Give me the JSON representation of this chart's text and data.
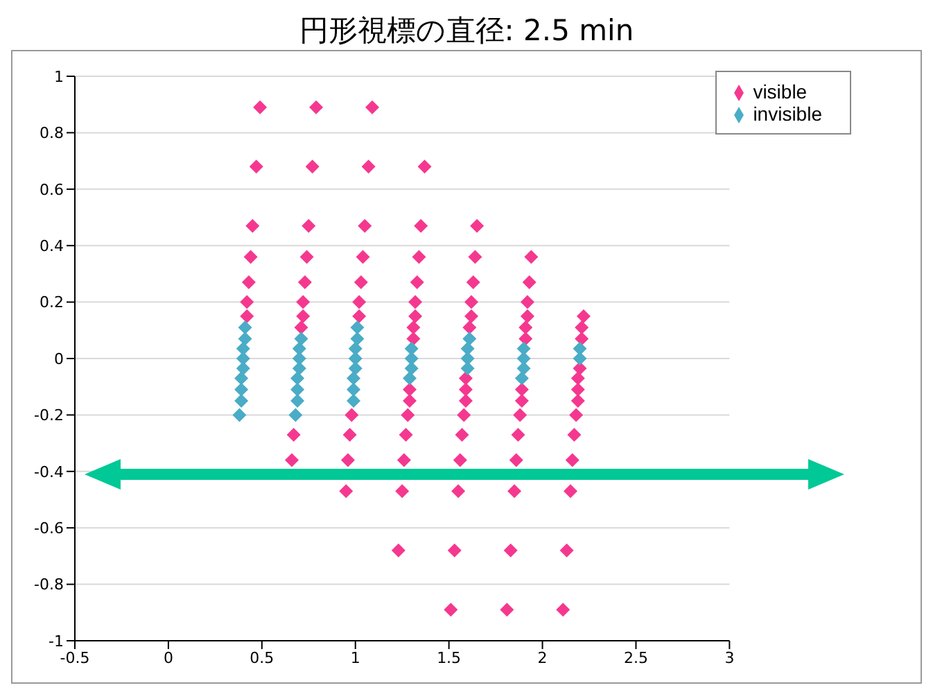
{
  "chart_data": {
    "type": "scatter",
    "title": "円形視標の直径: 2.5 min",
    "xlim": [
      -0.5,
      3
    ],
    "xticks": [
      -0.5,
      0,
      0.5,
      1,
      1.5,
      2,
      2.5,
      3
    ],
    "ylim": [
      -1,
      1
    ],
    "yticks": [
      -1,
      -0.8,
      -0.6,
      -0.4,
      -0.2,
      0,
      0.2,
      0.4,
      0.6,
      0.8,
      1
    ],
    "grid": "y",
    "legend": "top right",
    "marker": "diamond",
    "series": [
      {
        "name": "visible",
        "color": "#f5388f",
        "x": [
          0.49,
          0.47,
          0.45,
          0.44,
          0.43,
          0.42,
          0.42,
          0.79,
          0.77,
          0.75,
          0.74,
          0.73,
          0.72,
          0.72,
          0.71,
          0.67,
          0.66,
          1.09,
          1.07,
          1.05,
          1.04,
          1.03,
          1.02,
          1.02,
          0.98,
          0.97,
          0.96,
          0.95,
          1.37,
          1.35,
          1.34,
          1.33,
          1.32,
          1.32,
          1.31,
          1.31,
          1.29,
          1.29,
          1.28,
          1.27,
          1.26,
          1.25,
          1.23,
          1.65,
          1.64,
          1.63,
          1.62,
          1.62,
          1.61,
          1.59,
          1.59,
          1.59,
          1.58,
          1.57,
          1.56,
          1.55,
          1.53,
          1.51,
          1.94,
          1.93,
          1.92,
          1.92,
          1.91,
          1.91,
          1.89,
          1.89,
          1.88,
          1.87,
          1.86,
          1.85,
          1.83,
          1.81,
          2.22,
          2.21,
          2.21,
          2.2,
          2.19,
          2.19,
          2.19,
          2.18,
          2.17,
          2.16,
          2.15,
          2.13,
          2.11
        ],
        "values": [
          0.89,
          0.68,
          0.47,
          0.36,
          0.27,
          0.2,
          0.15,
          0.89,
          0.68,
          0.47,
          0.36,
          0.27,
          0.2,
          0.15,
          0.11,
          -0.27,
          -0.36,
          0.89,
          0.68,
          0.47,
          0.36,
          0.27,
          0.2,
          0.15,
          -0.2,
          -0.27,
          -0.36,
          -0.47,
          0.68,
          0.47,
          0.36,
          0.27,
          0.2,
          0.15,
          0.11,
          0.07,
          -0.11,
          -0.15,
          -0.2,
          -0.27,
          -0.36,
          -0.47,
          -0.68,
          0.47,
          0.36,
          0.27,
          0.2,
          0.15,
          0.11,
          -0.07,
          -0.11,
          -0.15,
          -0.2,
          -0.27,
          -0.36,
          -0.47,
          -0.68,
          -0.89,
          0.36,
          0.27,
          0.2,
          0.15,
          0.11,
          0.07,
          -0.11,
          -0.15,
          -0.2,
          -0.27,
          -0.36,
          -0.47,
          -0.68,
          -0.89,
          0.15,
          0.11,
          0.07,
          -0.035,
          -0.07,
          -0.11,
          -0.15,
          -0.2,
          -0.27,
          -0.36,
          -0.47,
          -0.68,
          -0.89
        ]
      },
      {
        "name": "invisible",
        "color": "#4aacc6",
        "x": [
          0.41,
          0.41,
          0.4,
          0.4,
          0.4,
          0.39,
          0.39,
          0.39,
          0.38,
          0.71,
          0.7,
          0.7,
          0.7,
          0.69,
          0.69,
          0.69,
          0.68,
          1.01,
          1.01,
          1,
          1,
          1,
          0.99,
          0.99,
          0.99,
          1.3,
          1.3,
          1.3,
          1.29,
          1.61,
          1.6,
          1.6,
          1.6,
          1.9,
          1.9,
          1.9,
          1.89,
          2.2,
          2.2
        ],
        "values": [
          0.11,
          0.07,
          0.035,
          0,
          -0.035,
          -0.07,
          -0.11,
          -0.15,
          -0.2,
          0.07,
          0.035,
          0,
          -0.035,
          -0.07,
          -0.11,
          -0.15,
          -0.2,
          0.11,
          0.07,
          0.035,
          0,
          -0.035,
          -0.07,
          -0.11,
          -0.15,
          0.035,
          0,
          -0.035,
          -0.07,
          0.07,
          0.035,
          0,
          -0.035,
          0.035,
          0,
          -0.035,
          -0.07,
          0.035,
          0
        ]
      }
    ]
  }
}
